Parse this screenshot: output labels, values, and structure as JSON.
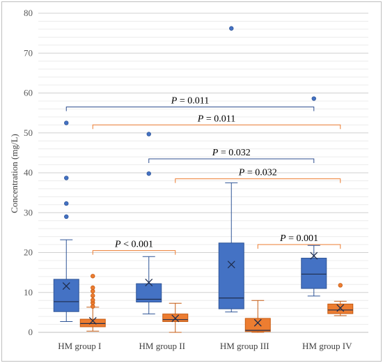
{
  "chart_data": {
    "type": "box",
    "ylabel": "Concentration (mg/L)",
    "ylim": [
      0,
      80
    ],
    "yticks": [
      0,
      10,
      20,
      30,
      40,
      50,
      60,
      70,
      80
    ],
    "grid": true,
    "categories": [
      "HM group I",
      "HM group II",
      "HM group III",
      "HM group IV"
    ],
    "series": [
      {
        "color": "#4472c4",
        "boxes": [
          {
            "min": 2.7,
            "q1": 5.2,
            "median": 7.7,
            "q3": 13.3,
            "max": 23.2,
            "mean": 11.6,
            "outliers": [
              29.0,
              32.3,
              38.7,
              52.5
            ]
          },
          {
            "min": 4.6,
            "q1": 7.6,
            "median": 8.3,
            "q3": 12.2,
            "max": 19.0,
            "mean": 12.5,
            "outliers": [
              39.8,
              49.7
            ]
          },
          {
            "min": 5.1,
            "q1": 5.9,
            "median": 8.6,
            "q3": 22.4,
            "max": 37.5,
            "mean": 17.0,
            "outliers": [
              76.2
            ]
          },
          {
            "min": 9.1,
            "q1": 11.0,
            "median": 14.6,
            "q3": 18.6,
            "max": 21.8,
            "mean": 19.2,
            "outliers": [
              58.6
            ]
          }
        ]
      },
      {
        "color": "#ed7d31",
        "boxes": [
          {
            "min": 0.3,
            "q1": 1.4,
            "median": 2.2,
            "q3": 3.3,
            "max": 6.3,
            "mean": 2.9,
            "outliers": [
              6.5,
              7.4,
              8.1,
              9.2,
              10.3,
              11.2,
              14.1
            ]
          },
          {
            "min": 0.0,
            "q1": 2.7,
            "median": 3.2,
            "q3": 4.6,
            "max": 7.3,
            "mean": 3.5,
            "outliers": []
          },
          {
            "min": 0.0,
            "q1": 0.2,
            "median": 0.5,
            "q3": 3.5,
            "max": 8.0,
            "mean": 2.4,
            "outliers": []
          },
          {
            "min": 4.2,
            "q1": 4.7,
            "median": 5.6,
            "q3": 7.1,
            "max": 7.8,
            "mean": 6.1,
            "outliers": [
              11.8
            ]
          }
        ]
      }
    ],
    "annotations": [
      {
        "text": "P = 0.011",
        "color": "#2f4f8f",
        "y": 56.5,
        "from": {
          "group": 0,
          "series": 0
        },
        "to": {
          "group": 3,
          "series": 0
        }
      },
      {
        "text": "P = 0.011",
        "color": "#ed7d31",
        "y": 52.0,
        "from": {
          "group": 0,
          "series": 1
        },
        "to": {
          "group": 3,
          "series": 1
        }
      },
      {
        "text": "P = 0.032",
        "color": "#2f4f8f",
        "y": 43.5,
        "from": {
          "group": 1,
          "series": 0
        },
        "to": {
          "group": 3,
          "series": 0
        }
      },
      {
        "text": "P = 0.032",
        "color": "#ed7d31",
        "y": 38.5,
        "from": {
          "group": 1,
          "series": 1
        },
        "to": {
          "group": 3,
          "series": 1
        }
      },
      {
        "text": "P < 0.001",
        "color": "#ed7d31",
        "y": 20.5,
        "from": {
          "group": 0,
          "series": 1
        },
        "to": {
          "group": 1,
          "series": 1
        }
      },
      {
        "text": "P = 0.001",
        "color": "#ed7d31",
        "y": 22.0,
        "from": {
          "group": 2,
          "series": 1
        },
        "to": {
          "group": 3,
          "series": 1
        }
      }
    ]
  }
}
